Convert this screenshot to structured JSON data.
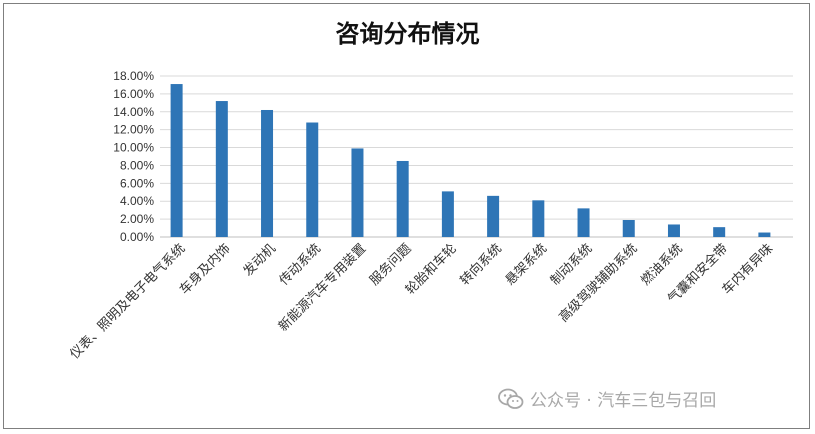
{
  "chart_data": {
    "type": "bar",
    "title": "咨询分布情况",
    "categories": [
      "仪表、照明及电子电气系统",
      "车身及内饰",
      "发动机",
      "传动系统",
      "新能源汽车专用装置",
      "服务问题",
      "轮胎和车轮",
      "转向系统",
      "悬架系统",
      "制动系统",
      "高级驾驶辅助系统",
      "燃油系统",
      "气囊和安全带",
      "车内有异味"
    ],
    "values": [
      17.1,
      15.2,
      14.2,
      12.8,
      9.9,
      8.5,
      5.1,
      4.6,
      4.1,
      3.2,
      1.9,
      1.4,
      1.1,
      0.5
    ],
    "y_ticks": [
      "0.00%",
      "2.00%",
      "4.00%",
      "6.00%",
      "8.00%",
      "10.00%",
      "12.00%",
      "14.00%",
      "16.00%",
      "18.00%"
    ],
    "ylim": [
      0,
      18
    ],
    "grid": true,
    "bar_color": "#2E75B6"
  },
  "watermark": {
    "icon": "wechat-icon",
    "text": "公众号 · 汽车三包与召回"
  }
}
